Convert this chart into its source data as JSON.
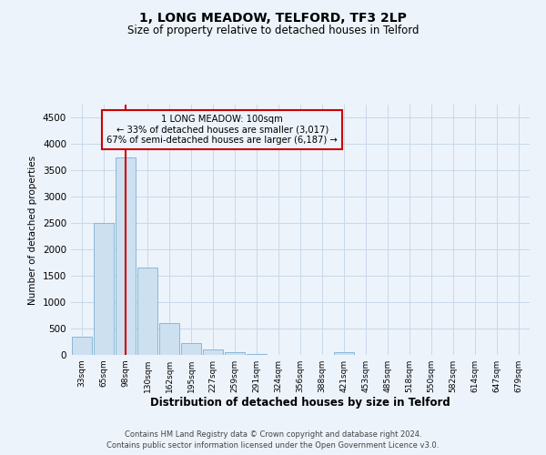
{
  "title": "1, LONG MEADOW, TELFORD, TF3 2LP",
  "subtitle": "Size of property relative to detached houses in Telford",
  "xlabel": "Distribution of detached houses by size in Telford",
  "ylabel": "Number of detached properties",
  "footer_line1": "Contains HM Land Registry data © Crown copyright and database right 2024.",
  "footer_line2": "Contains public sector information licensed under the Open Government Licence v3.0.",
  "bar_color": "#cce0f0",
  "bar_edge_color": "#89b8d8",
  "grid_color": "#c8d8e8",
  "background_color": "#edf3fb",
  "red_line_color": "#cc0000",
  "annotation_box_edge": "#cc0000",
  "property_label": "1 LONG MEADOW: 100sqm",
  "annotation_line1": "← 33% of detached houses are smaller (3,017)",
  "annotation_line2": "67% of semi-detached houses are larger (6,187) →",
  "bin_labels": [
    "33sqm",
    "65sqm",
    "98sqm",
    "130sqm",
    "162sqm",
    "195sqm",
    "227sqm",
    "259sqm",
    "291sqm",
    "324sqm",
    "356sqm",
    "388sqm",
    "421sqm",
    "453sqm",
    "485sqm",
    "518sqm",
    "550sqm",
    "582sqm",
    "614sqm",
    "647sqm",
    "679sqm"
  ],
  "bar_values": [
    350,
    2500,
    3750,
    1650,
    600,
    225,
    100,
    55,
    15,
    5,
    0,
    0,
    55,
    0,
    0,
    0,
    0,
    0,
    0,
    0,
    0
  ],
  "ylim": [
    0,
    4750
  ],
  "yticks": [
    0,
    500,
    1000,
    1500,
    2000,
    2500,
    3000,
    3500,
    4000,
    4500
  ],
  "red_line_bin_index": 2,
  "figsize": [
    6.0,
    5.0
  ],
  "dpi": 100
}
